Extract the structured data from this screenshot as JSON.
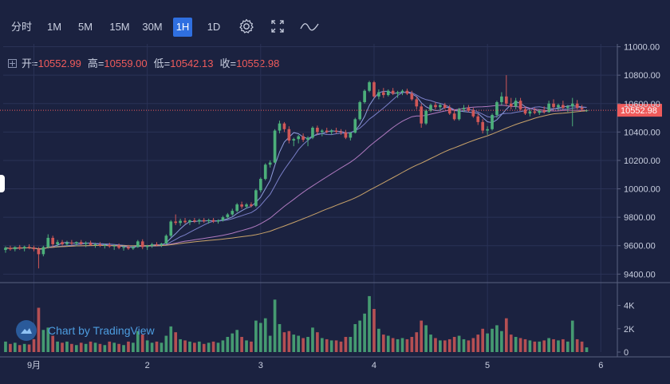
{
  "toolbar": {
    "timeframes": [
      {
        "label": "分时",
        "active": false
      },
      {
        "label": "1M",
        "active": false
      },
      {
        "label": "5M",
        "active": false
      },
      {
        "label": "15M",
        "active": false
      },
      {
        "label": "30M",
        "active": false
      },
      {
        "label": "1H",
        "active": true
      },
      {
        "label": "1D",
        "active": false
      }
    ],
    "icons": [
      "settings-icon",
      "fullscreen-icon",
      "line-chart-icon"
    ]
  },
  "ohlc": {
    "open_label": "开=",
    "open": "10552.99",
    "high_label": "高=",
    "high": "10559.00",
    "low_label": "低=",
    "low": "10542.13",
    "close_label": "收=",
    "close": "10552.98"
  },
  "watermark": "Chart by TradingView",
  "colors": {
    "background": "#1b2240",
    "up": "#4caf7a",
    "down": "#d05757",
    "accent": "#2f6fe0",
    "price_tag": "#ef5b5b",
    "ma_short": "#8f9cdc",
    "ma_mid": "#7b80c9",
    "ma_long": "#b07ac0",
    "ma_vlong": "#c9a36a"
  },
  "chart_data": {
    "type": "candlestick",
    "interval": "1H",
    "price_axis": {
      "ticks": [
        "11000.00",
        "10800.00",
        "10600.00",
        "10400.00",
        "10200.00",
        "10000.00",
        "9800.00",
        "9600.00",
        "9400.00"
      ],
      "ylim": [
        9340,
        11020
      ]
    },
    "volume_axis": {
      "ticks": [
        "4K",
        "2K",
        "0"
      ],
      "ylim": [
        0,
        5000
      ]
    },
    "time_axis": {
      "ticks": [
        {
          "label": "9月",
          "index": 6
        },
        {
          "label": "2",
          "index": 30
        },
        {
          "label": "3",
          "index": 54
        },
        {
          "label": "4",
          "index": 78
        },
        {
          "label": "5",
          "index": 102
        },
        {
          "label": "6",
          "index": 126
        }
      ]
    },
    "last_price": {
      "value": 10552.98,
      "label": "10552.98"
    },
    "candles": [
      [
        9570,
        9595,
        9550,
        9585,
        900
      ],
      [
        9585,
        9600,
        9565,
        9575,
        700
      ],
      [
        9575,
        9595,
        9560,
        9590,
        800
      ],
      [
        9590,
        9605,
        9570,
        9580,
        600
      ],
      [
        9580,
        9600,
        9560,
        9592,
        700
      ],
      [
        9592,
        9610,
        9575,
        9585,
        650
      ],
      [
        9585,
        9600,
        9560,
        9575,
        1100
      ],
      [
        9575,
        9590,
        9440,
        9540,
        3800
      ],
      [
        9540,
        9600,
        9525,
        9590,
        1900
      ],
      [
        9590,
        9680,
        9580,
        9655,
        2100
      ],
      [
        9655,
        9670,
        9590,
        9610,
        1400
      ],
      [
        9610,
        9640,
        9590,
        9625,
        900
      ],
      [
        9625,
        9640,
        9600,
        9610,
        800
      ],
      [
        9610,
        9635,
        9595,
        9622,
        900
      ],
      [
        9622,
        9640,
        9605,
        9615,
        700
      ],
      [
        9615,
        9630,
        9595,
        9625,
        600
      ],
      [
        9625,
        9640,
        9605,
        9612,
        800
      ],
      [
        9612,
        9630,
        9590,
        9620,
        700
      ],
      [
        9620,
        9635,
        9600,
        9605,
        900
      ],
      [
        9605,
        9620,
        9585,
        9610,
        800
      ],
      [
        9610,
        9625,
        9590,
        9600,
        700
      ],
      [
        9600,
        9615,
        9580,
        9605,
        600
      ],
      [
        9605,
        9620,
        9585,
        9595,
        900
      ],
      [
        9595,
        9610,
        9570,
        9600,
        800
      ],
      [
        9600,
        9615,
        9575,
        9585,
        700
      ],
      [
        9585,
        9600,
        9565,
        9590,
        600
      ],
      [
        9590,
        9605,
        9570,
        9580,
        900
      ],
      [
        9580,
        9600,
        9570,
        9590,
        800
      ],
      [
        9590,
        9640,
        9585,
        9630,
        1800
      ],
      [
        9630,
        9645,
        9575,
        9590,
        1500
      ],
      [
        9590,
        9605,
        9570,
        9600,
        1000
      ],
      [
        9600,
        9620,
        9585,
        9610,
        800
      ],
      [
        9610,
        9625,
        9595,
        9605,
        900
      ],
      [
        9605,
        9620,
        9590,
        9615,
        800
      ],
      [
        9615,
        9680,
        9610,
        9670,
        1400
      ],
      [
        9670,
        9780,
        9660,
        9770,
        2200
      ],
      [
        9770,
        9820,
        9745,
        9760,
        1700
      ],
      [
        9760,
        9790,
        9740,
        9775,
        1100
      ],
      [
        9775,
        9795,
        9755,
        9765,
        1000
      ],
      [
        9765,
        9785,
        9745,
        9778,
        900
      ],
      [
        9778,
        9795,
        9760,
        9770,
        800
      ],
      [
        9770,
        9790,
        9750,
        9780,
        900
      ],
      [
        9780,
        9795,
        9760,
        9772,
        700
      ],
      [
        9772,
        9790,
        9755,
        9780,
        800
      ],
      [
        9780,
        9795,
        9760,
        9770,
        900
      ],
      [
        9770,
        9785,
        9755,
        9778,
        800
      ],
      [
        9778,
        9810,
        9770,
        9800,
        1000
      ],
      [
        9800,
        9830,
        9790,
        9820,
        1300
      ],
      [
        9820,
        9860,
        9810,
        9845,
        1600
      ],
      [
        9845,
        9900,
        9835,
        9890,
        1900
      ],
      [
        9890,
        9910,
        9860,
        9875,
        1300
      ],
      [
        9875,
        9900,
        9860,
        9890,
        1000
      ],
      [
        9890,
        9905,
        9870,
        9880,
        900
      ],
      [
        9880,
        10000,
        9870,
        9990,
        2700
      ],
      [
        9990,
        10080,
        9975,
        10070,
        2500
      ],
      [
        10070,
        10180,
        10060,
        10170,
        2900
      ],
      [
        10170,
        10200,
        10150,
        10185,
        1400
      ],
      [
        10185,
        10420,
        10180,
        10410,
        4500
      ],
      [
        10410,
        10480,
        10390,
        10460,
        2400
      ],
      [
        10460,
        10470,
        10400,
        10420,
        1700
      ],
      [
        10420,
        10440,
        10320,
        10340,
        1800
      ],
      [
        10340,
        10360,
        10300,
        10350,
        1500
      ],
      [
        10350,
        10380,
        10320,
        10370,
        1400
      ],
      [
        10370,
        10390,
        10330,
        10345,
        1200
      ],
      [
        10345,
        10370,
        10300,
        10360,
        1300
      ],
      [
        10360,
        10440,
        10350,
        10430,
        2100
      ],
      [
        10430,
        10445,
        10380,
        10400,
        1700
      ],
      [
        10400,
        10420,
        10370,
        10410,
        1200
      ],
      [
        10410,
        10430,
        10390,
        10400,
        1100
      ],
      [
        10400,
        10420,
        10380,
        10410,
        1000
      ],
      [
        10410,
        10430,
        10390,
        10402,
        1000
      ],
      [
        10402,
        10420,
        10380,
        10398,
        900
      ],
      [
        10398,
        10415,
        10350,
        10360,
        1300
      ],
      [
        10360,
        10400,
        10340,
        10395,
        1300
      ],
      [
        10395,
        10500,
        10390,
        10490,
        2400
      ],
      [
        10490,
        10620,
        10480,
        10610,
        2700
      ],
      [
        10610,
        10700,
        10600,
        10690,
        3300
      ],
      [
        10690,
        10760,
        10680,
        10750,
        4800
      ],
      [
        10750,
        10760,
        10640,
        10650,
        3700
      ],
      [
        10650,
        10700,
        10630,
        10680,
        2000
      ],
      [
        10680,
        10710,
        10640,
        10660,
        1500
      ],
      [
        10660,
        10700,
        10650,
        10690,
        1400
      ],
      [
        10690,
        10710,
        10660,
        10670,
        1200
      ],
      [
        10670,
        10690,
        10640,
        10680,
        1100
      ],
      [
        10680,
        10700,
        10660,
        10690,
        1200
      ],
      [
        10690,
        10705,
        10660,
        10670,
        1100
      ],
      [
        10670,
        10690,
        10620,
        10630,
        1300
      ],
      [
        10630,
        10650,
        10560,
        10580,
        1700
      ],
      [
        10580,
        10600,
        10430,
        10460,
        2700
      ],
      [
        10460,
        10560,
        10450,
        10550,
        2300
      ],
      [
        10550,
        10600,
        10540,
        10590,
        1500
      ],
      [
        10590,
        10610,
        10560,
        10575,
        1200
      ],
      [
        10575,
        10600,
        10550,
        10590,
        1000
      ],
      [
        10590,
        10605,
        10560,
        10570,
        1000
      ],
      [
        10570,
        10590,
        10520,
        10530,
        1100
      ],
      [
        10530,
        10560,
        10480,
        10490,
        1300
      ],
      [
        10490,
        10570,
        10480,
        10560,
        1400
      ],
      [
        10560,
        10590,
        10540,
        10570,
        1100
      ],
      [
        10570,
        10590,
        10540,
        10550,
        1000
      ],
      [
        10550,
        10570,
        10500,
        10510,
        1200
      ],
      [
        10510,
        10530,
        10450,
        10470,
        1500
      ],
      [
        10470,
        10490,
        10390,
        10410,
        2000
      ],
      [
        10410,
        10440,
        10380,
        10420,
        1600
      ],
      [
        10420,
        10530,
        10410,
        10520,
        2000
      ],
      [
        10520,
        10620,
        10500,
        10610,
        2300
      ],
      [
        10610,
        10680,
        10590,
        10650,
        1800
      ],
      [
        10650,
        10800,
        10580,
        10600,
        2900
      ],
      [
        10600,
        10640,
        10560,
        10580,
        1500
      ],
      [
        10580,
        10640,
        10560,
        10620,
        1300
      ],
      [
        10620,
        10640,
        10550,
        10560,
        1200
      ],
      [
        10560,
        10580,
        10520,
        10530,
        1100
      ],
      [
        10530,
        10560,
        10510,
        10545,
        1000
      ],
      [
        10545,
        10570,
        10525,
        10535,
        900
      ],
      [
        10535,
        10560,
        10520,
        10550,
        900
      ],
      [
        10550,
        10580,
        10530,
        10540,
        1000
      ],
      [
        10540,
        10620,
        10535,
        10600,
        1200
      ],
      [
        10600,
        10630,
        10560,
        10575,
        1100
      ],
      [
        10575,
        10600,
        10550,
        10590,
        1000
      ],
      [
        10590,
        10620,
        10560,
        10570,
        1100
      ],
      [
        10570,
        10590,
        10540,
        10580,
        900
      ],
      [
        10580,
        10640,
        10440,
        10600,
        2700
      ],
      [
        10600,
        10625,
        10560,
        10570,
        1100
      ],
      [
        10570,
        10590,
        10545,
        10560,
        900
      ],
      [
        10553,
        10559,
        10542,
        10553,
        400
      ]
    ]
  }
}
